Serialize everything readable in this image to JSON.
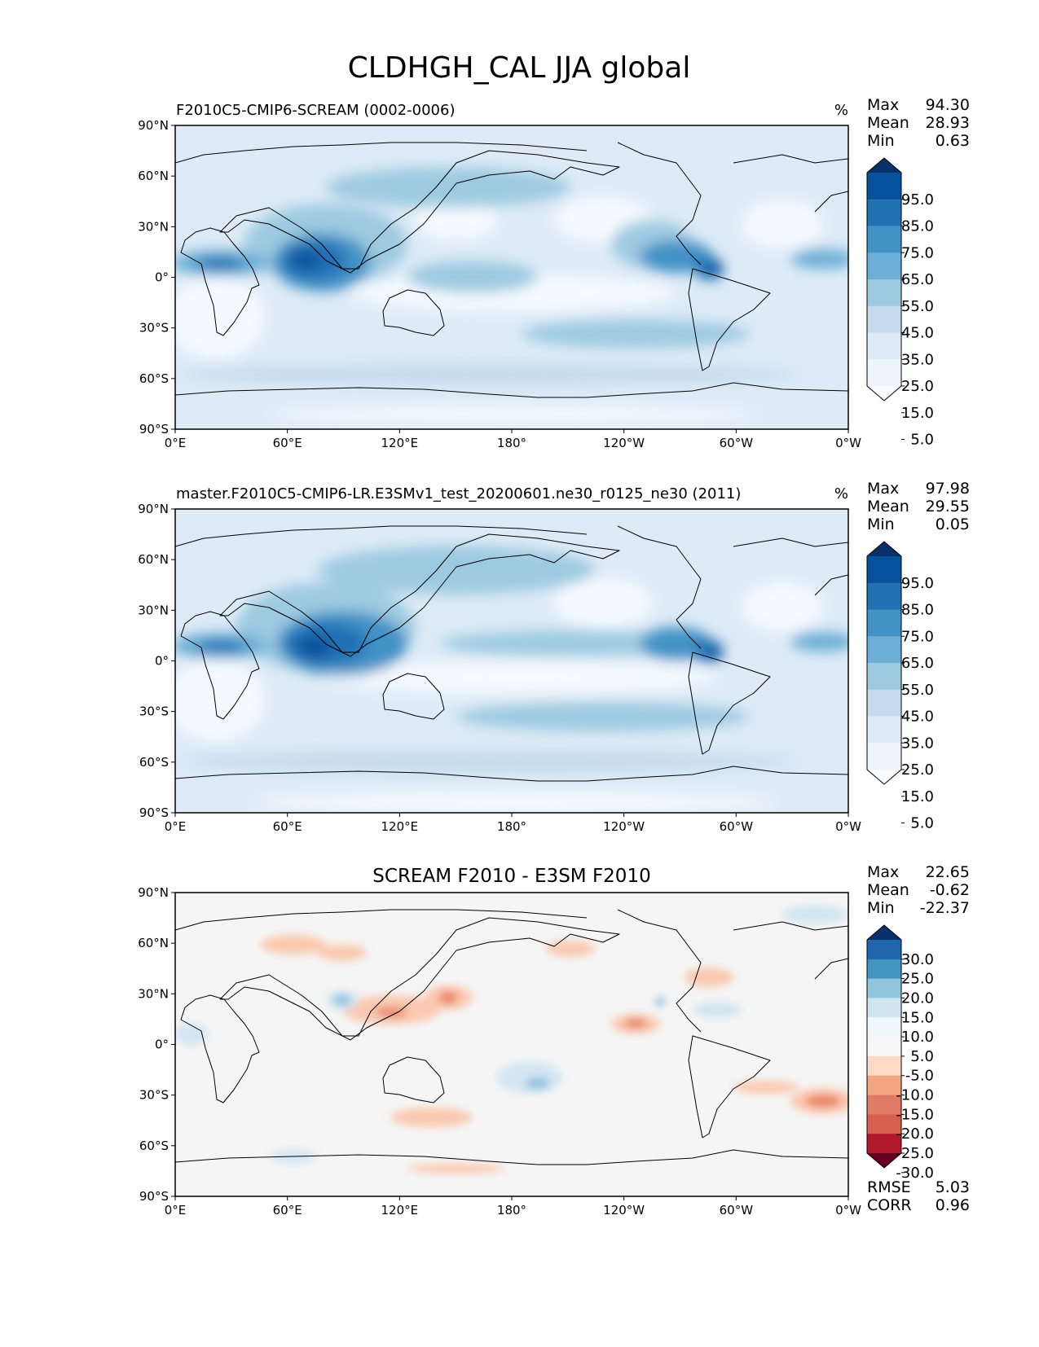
{
  "title": "CLDHGH_CAL JJA global",
  "axes": {
    "lat_ticks": [
      "90°N",
      "60°N",
      "30°N",
      "0°",
      "30°S",
      "60°S",
      "90°S"
    ],
    "lon_ticks": [
      "0°E",
      "60°E",
      "120°E",
      "180°",
      "120°W",
      "60°W",
      "0°W"
    ]
  },
  "panels": [
    {
      "title": "F2010C5-CMIP6-SCREAM (0002-0006)",
      "units": "%",
      "stats": {
        "max": "94.30",
        "mean": "28.93",
        "min": "0.63"
      },
      "colorbar": {
        "labels": [
          "95.0",
          "85.0",
          "75.0",
          "65.0",
          "55.0",
          "45.0",
          "35.0",
          "25.0",
          "15.0",
          "5.0"
        ],
        "colors": [
          "#08306b",
          "#08519c",
          "#2171b5",
          "#4292c6",
          "#6baed6",
          "#9ecae1",
          "#c6dbef",
          "#deebf7",
          "#eef5fc",
          "#f7fbff"
        ]
      },
      "map_colors": {
        "base": "#deebf7",
        "light": "#f5f9fe",
        "mid": "#9ecae1",
        "strong": "#4292c6",
        "core": "#2171b5",
        "peak": "#08519c"
      }
    },
    {
      "title": "master.F2010C5-CMIP6-LR.E3SMv1_test_20200601.ne30_r0125_ne30 (2011)",
      "units": "%",
      "stats": {
        "max": "97.98",
        "mean": "29.55",
        "min": "0.05"
      },
      "colorbar": {
        "labels": [
          "95.0",
          "85.0",
          "75.0",
          "65.0",
          "55.0",
          "45.0",
          "35.0",
          "25.0",
          "15.0",
          "5.0"
        ],
        "colors": [
          "#08306b",
          "#08519c",
          "#2171b5",
          "#4292c6",
          "#6baed6",
          "#9ecae1",
          "#c6dbef",
          "#deebf7",
          "#eef5fc",
          "#f7fbff"
        ]
      },
      "map_colors": {
        "base": "#deebf7",
        "light": "#f5f9fe",
        "mid": "#9ecae1",
        "strong": "#4292c6",
        "core": "#2171b5",
        "peak": "#08519c"
      }
    },
    {
      "title": "SCREAM F2010 - E3SM F2010",
      "units": "",
      "stats": {
        "max": "22.65",
        "mean": "-0.62",
        "min": "-22.37"
      },
      "colorbar": {
        "labels": [
          "30.0",
          "25.0",
          "20.0",
          "15.0",
          "10.0",
          "5.0",
          "-5.0",
          "-10.0",
          "-15.0",
          "-20.0",
          "-25.0",
          "-30.0"
        ],
        "colors": [
          "#08306b",
          "#2166ac",
          "#4393c3",
          "#92c5de",
          "#d1e5f0",
          "#f0f6fa",
          "#f7f7f7",
          "#fddbc7",
          "#f4a582",
          "#e07b65",
          "#d6604d",
          "#b2182b",
          "#67001f"
        ]
      },
      "map_colors": {
        "base": "#f5f5f5",
        "pos": "#fac9b0",
        "pos_strong": "#e8866a",
        "neg": "#d3e6f2",
        "neg_strong": "#8fc2de"
      },
      "metrics": {
        "rmse_label": "RMSE",
        "rmse": "5.03",
        "corr_label": "CORR",
        "corr": "0.96"
      }
    }
  ]
}
